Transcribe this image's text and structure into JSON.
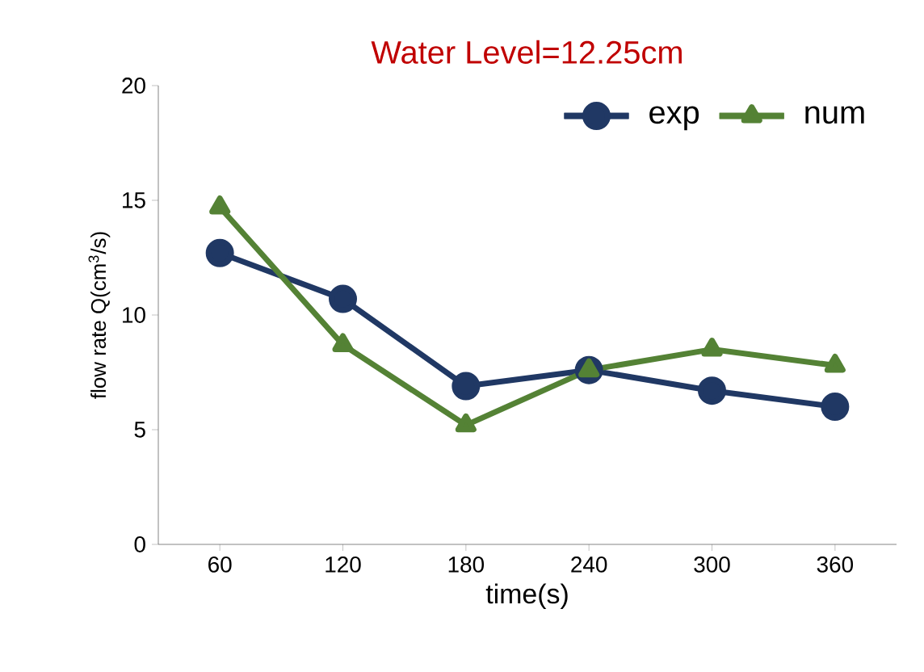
{
  "chart_data": {
    "type": "line",
    "title": "Water Level=12.25cm",
    "xlabel": "time(s)",
    "ylabel": "flow rate Q(cm$^{3}$/s)",
    "categories": [
      "60",
      "120",
      "180",
      "240",
      "300",
      "360"
    ],
    "series": [
      {
        "name": "exp",
        "color": "#203864",
        "marker": "circle",
        "values": [
          12.7,
          10.7,
          6.9,
          7.6,
          6.7,
          6.0
        ]
      },
      {
        "name": "num",
        "color": "#548235",
        "marker": "triangle",
        "values": [
          14.7,
          8.7,
          5.2,
          7.6,
          8.5,
          7.8
        ]
      }
    ],
    "ylim": [
      0,
      20
    ],
    "yticks": [
      0,
      5,
      10,
      15,
      20
    ],
    "grid": false,
    "legend": "top right"
  }
}
